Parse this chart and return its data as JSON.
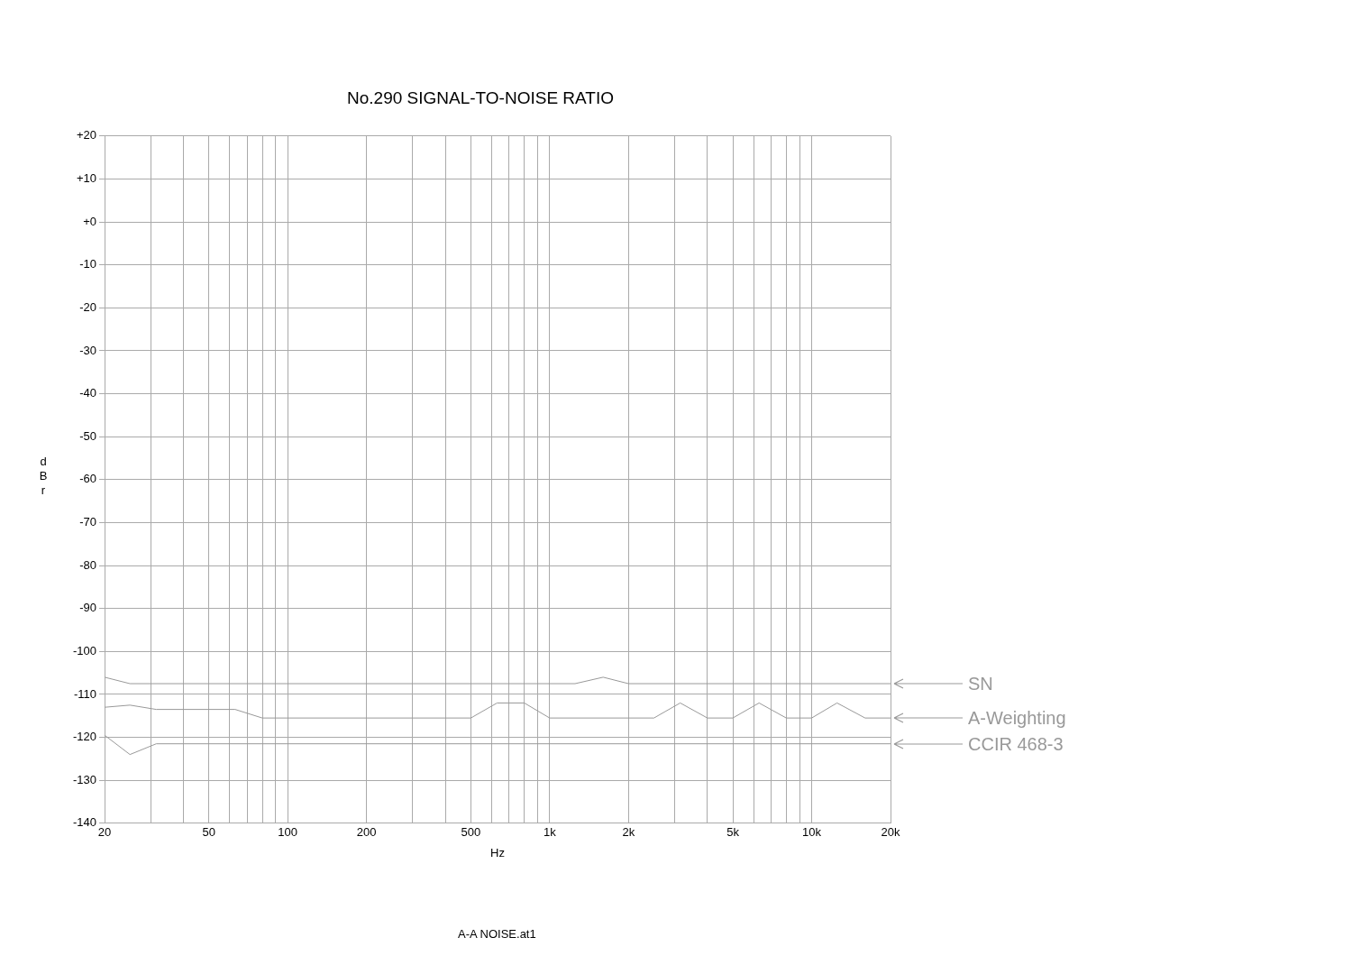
{
  "chart_data": {
    "type": "line",
    "title": "No.290 SIGNAL-TO-NOISE RATIO",
    "xlabel": "Hz",
    "ylabel": "dBr",
    "annotations": [
      "A-A NOISE.at1"
    ],
    "log": "x",
    "grid": true,
    "legend": "right",
    "marker": "none",
    "line_style": "solid",
    "xlim": [
      20,
      20000
    ],
    "xticks": [
      20,
      {
        "value": 30,
        "label": null
      },
      {
        "value": 40,
        "label": null
      },
      50,
      {
        "value": 60,
        "label": null
      },
      {
        "value": 70,
        "label": null
      },
      {
        "value": 80,
        "label": null
      },
      {
        "value": 90,
        "label": null
      },
      100,
      200,
      {
        "value": 300,
        "label": null
      },
      {
        "value": 400,
        "label": null
      },
      500,
      {
        "value": 600,
        "label": null
      },
      {
        "value": 700,
        "label": null
      },
      {
        "value": 800,
        "label": null
      },
      {
        "value": 900,
        "label": null
      },
      {
        "value": 1000,
        "label": "1k"
      },
      {
        "value": 2000,
        "label": "2k"
      },
      {
        "value": 3000,
        "label": null
      },
      {
        "value": 4000,
        "label": null
      },
      {
        "value": 5000,
        "label": "5k"
      },
      {
        "value": 6000,
        "label": null
      },
      {
        "value": 7000,
        "label": null
      },
      {
        "value": 8000,
        "label": null
      },
      {
        "value": 9000,
        "label": null
      },
      {
        "value": 10000,
        "label": "10k"
      },
      {
        "value": 20000,
        "label": "20k"
      }
    ],
    "ylim": [
      -140,
      20
    ],
    "yticks": [
      {
        "value": 20,
        "label": "+20"
      },
      {
        "value": 10,
        "label": "+10"
      },
      {
        "value": 0,
        "label": "+0"
      },
      -10,
      -20,
      -30,
      -40,
      -50,
      -60,
      -70,
      -80,
      -90,
      -100,
      -110,
      -120,
      -130,
      -140
    ],
    "series": [
      {
        "name": "SN",
        "color": "#999999",
        "x": [
          20,
          25,
          1250,
          1600,
          2000,
          20000
        ],
        "values": [
          -106,
          -107.5,
          -107.5,
          -106,
          -107.5,
          -107.5
        ]
      },
      {
        "name": "A-Weighting",
        "color": "#999999",
        "x": [
          20,
          25,
          31.5,
          63,
          80,
          500,
          630,
          800,
          1000,
          2500,
          3150,
          4000,
          5000,
          6300,
          8000,
          10000,
          12500,
          16000,
          20000
        ],
        "values": [
          -113,
          -112.5,
          -113.5,
          -113.5,
          -115.5,
          -115.5,
          -112,
          -112,
          -115.5,
          -115.5,
          -112,
          -115.5,
          -115.5,
          -112,
          -115.5,
          -115.5,
          -112,
          -115.5,
          -115.5
        ]
      },
      {
        "name": "CCIR 468-3",
        "color": "#999999",
        "x": [
          20,
          25,
          31.5,
          20000
        ],
        "values": [
          -119.5,
          -124,
          -121.5,
          -121.5
        ]
      }
    ]
  }
}
